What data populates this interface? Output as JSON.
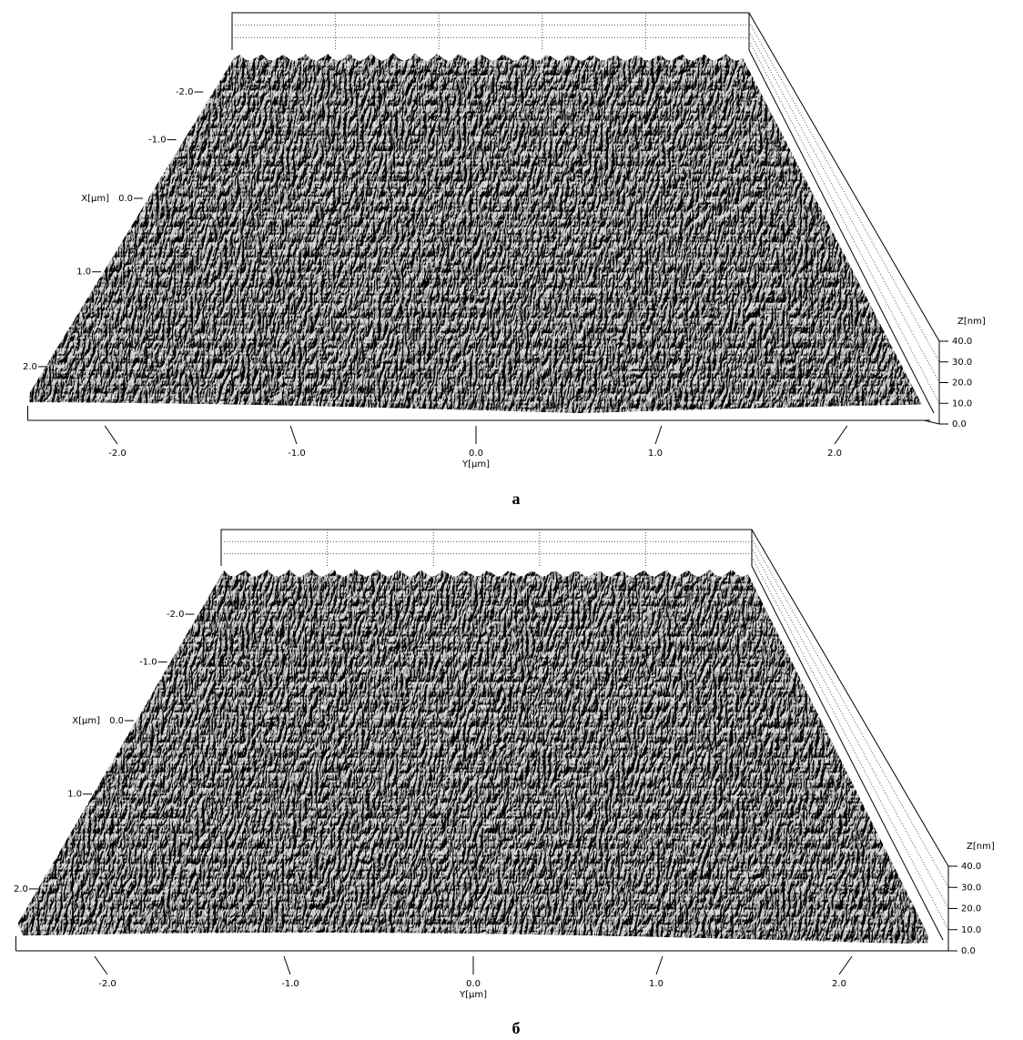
{
  "chart_data": [
    {
      "type": "surface3d",
      "caption": "а",
      "xlabel": "X[µm]",
      "ylabel": "Y[µm]",
      "zlabel": "Z[nm]",
      "xlim": [
        -2.5,
        2.5
      ],
      "ylim": [
        -2.5,
        2.5
      ],
      "zlim": [
        0,
        40
      ],
      "xticks": [
        {
          "value": -2,
          "label": "-2.0"
        },
        {
          "value": -1,
          "label": "-1.0"
        },
        {
          "value": 0,
          "label": "0.0"
        },
        {
          "value": 1,
          "label": "1.0"
        },
        {
          "value": 2,
          "label": "2.0"
        }
      ],
      "yticks": [
        {
          "value": -2,
          "label": "-2.0"
        },
        {
          "value": -1,
          "label": "-1.0"
        },
        {
          "value": 0,
          "label": "0.0"
        },
        {
          "value": 1,
          "label": "1.0"
        },
        {
          "value": 2,
          "label": "2.0"
        }
      ],
      "zticks": [
        {
          "value": 0,
          "label": "0.0"
        },
        {
          "value": 10,
          "label": "10.0"
        },
        {
          "value": 20,
          "label": "20.0"
        },
        {
          "value": 30,
          "label": "30.0"
        },
        {
          "value": 40,
          "label": "40.0"
        }
      ]
    },
    {
      "type": "surface3d",
      "caption": "б",
      "xlabel": "X[µm]",
      "ylabel": "Y[µm]",
      "zlabel": "Z[nm]",
      "xlim": [
        -2.5,
        2.5
      ],
      "ylim": [
        -2.5,
        2.5
      ],
      "zlim": [
        0,
        40
      ],
      "xticks": [
        {
          "value": -2,
          "label": "-2.0"
        },
        {
          "value": -1,
          "label": "-1.0"
        },
        {
          "value": 0,
          "label": "0.0"
        },
        {
          "value": 1,
          "label": "1.0"
        },
        {
          "value": 2,
          "label": "2.0"
        }
      ],
      "yticks": [
        {
          "value": -2,
          "label": "-2.0"
        },
        {
          "value": -1,
          "label": "-1.0"
        },
        {
          "value": 0,
          "label": "0.0"
        },
        {
          "value": 1,
          "label": "1.0"
        },
        {
          "value": 2,
          "label": "2.0"
        }
      ],
      "zticks": [
        {
          "value": 0,
          "label": "0.0"
        },
        {
          "value": 10,
          "label": "10.0"
        },
        {
          "value": 20,
          "label": "20.0"
        },
        {
          "value": 30,
          "label": "30.0"
        },
        {
          "value": 40,
          "label": "40.0"
        }
      ]
    }
  ]
}
